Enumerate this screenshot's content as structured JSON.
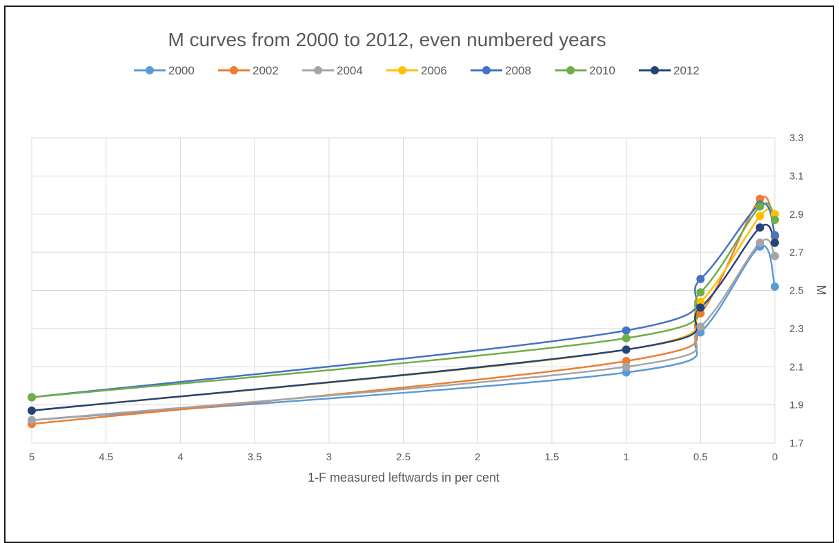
{
  "chart_data": {
    "type": "line",
    "title": "M curves from 2000 to 2012, even numbered years",
    "xlabel": "1-F measured leftwards in per cent",
    "ylabel": "M",
    "x_axis": {
      "reversed": true,
      "range": [
        0,
        5
      ],
      "step": 0.5,
      "tick_labels": [
        "5",
        "4.5",
        "4",
        "3.5",
        "3",
        "2.5",
        "2",
        "1.5",
        "1",
        "0.5",
        "0"
      ]
    },
    "y_axis": {
      "position": "right",
      "range": [
        1.7,
        3.3
      ],
      "step": 0.2,
      "tick_labels": [
        "1.7",
        "1.9",
        "2.1",
        "2.3",
        "2.5",
        "2.7",
        "2.9",
        "3.1",
        "3.3"
      ]
    },
    "grid": true,
    "legend": "top",
    "smooth": true,
    "x": [
      5,
      1,
      0.5,
      0.1,
      0
    ],
    "series": [
      {
        "name": "2000",
        "color": "#5B9BD5",
        "values": [
          1.82,
          2.07,
          2.28,
          2.73,
          2.52
        ]
      },
      {
        "name": "2002",
        "color": "#ED7D31",
        "values": [
          1.8,
          2.13,
          2.38,
          2.98,
          2.78
        ]
      },
      {
        "name": "2004",
        "color": "#A5A5A5",
        "values": [
          1.82,
          2.1,
          2.31,
          2.75,
          2.68
        ]
      },
      {
        "name": "2006",
        "color": "#FFC000",
        "values": [
          1.87,
          2.19,
          2.44,
          2.89,
          2.9
        ]
      },
      {
        "name": "2008",
        "color": "#4472C4",
        "values": [
          1.94,
          2.29,
          2.56,
          2.95,
          2.79
        ]
      },
      {
        "name": "2010",
        "color": "#70AD47",
        "values": [
          1.94,
          2.25,
          2.49,
          2.94,
          2.87
        ]
      },
      {
        "name": "2012",
        "color": "#264478",
        "values": [
          1.87,
          2.19,
          2.41,
          2.83,
          2.75
        ]
      }
    ]
  }
}
